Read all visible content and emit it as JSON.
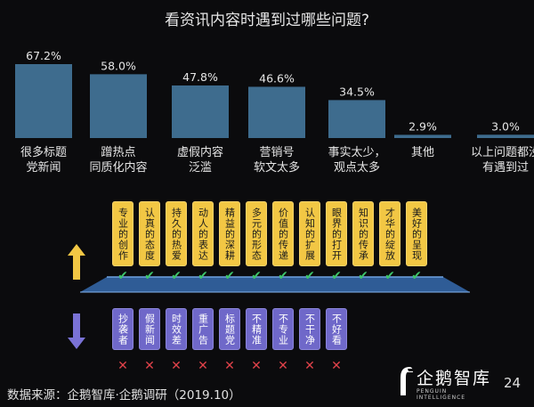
{
  "title": "看资讯内容时遇到过哪些问题?",
  "chart_data": {
    "type": "bar",
    "categories": [
      [
        "很多标题",
        "党新闻"
      ],
      [
        "蹭热点",
        "同质化内容"
      ],
      [
        "虚假内容",
        "泛滥"
      ],
      [
        "营销号",
        "软文太多"
      ],
      [
        "事实太少，",
        "观点太多"
      ],
      [
        "其他"
      ],
      [
        "以上问题都没",
        "有遇到过"
      ]
    ],
    "values": [
      67.2,
      58.0,
      47.8,
      46.6,
      34.5,
      2.9,
      3.0
    ],
    "value_labels": [
      "67.2%",
      "58.0%",
      "47.8%",
      "46.6%",
      "34.5%",
      "2.9%",
      "3.0%"
    ],
    "ylim": [
      0,
      67.2
    ],
    "bar_color": "#3e6c8e",
    "grid": false
  },
  "positive": {
    "arrow_color": "#f2c744",
    "tags": [
      "专业的创作",
      "认真的态度",
      "持久的热爱",
      "动人的表达",
      "精益的深耕",
      "多元的形态",
      "价值的传递",
      "认知的扩展",
      "眼界的打开",
      "知识的传承",
      "才华的绽放",
      "美好的呈现"
    ],
    "mark": "✔",
    "mark_color": "#3ec56a"
  },
  "negative": {
    "arrow_color": "#7a72d6",
    "tags": [
      "抄袭者",
      "假新闻",
      "时效差",
      "重广告",
      "标题党",
      "不精准",
      "不专业",
      "不干净",
      "不好看"
    ],
    "mark": "✕",
    "mark_color": "#e0424a"
  },
  "footer": {
    "source": "数据来源：企鹅智库·企鹅调研（2019.10）",
    "logo_main": "企鹅智库",
    "logo_sub": "PENGUIN INTELLIGENCE",
    "page_number": "24"
  }
}
